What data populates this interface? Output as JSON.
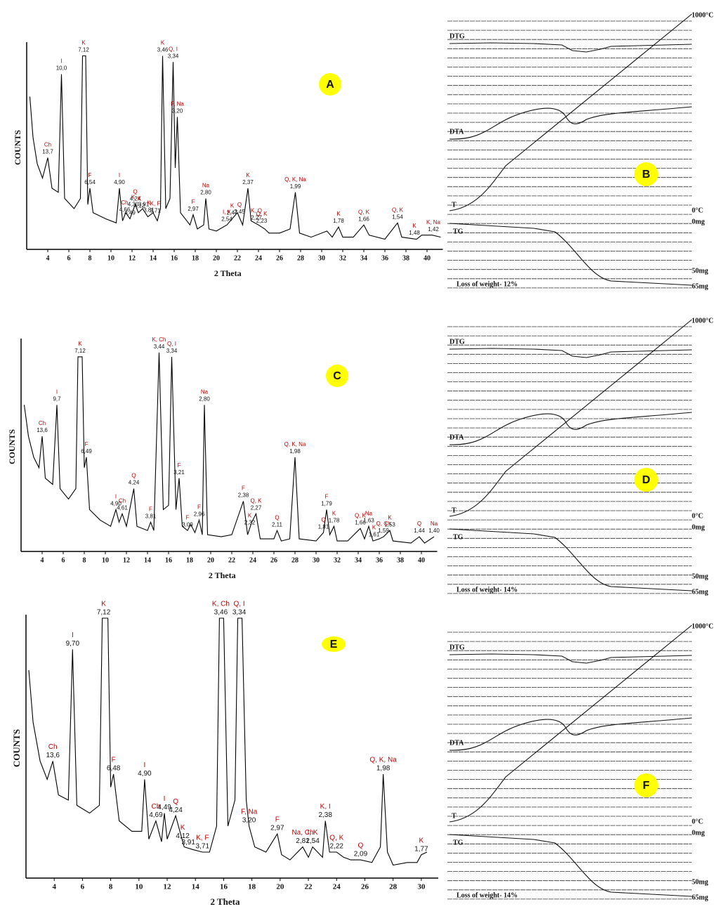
{
  "chart_data": [
    {
      "type": "line",
      "panel_label": "A",
      "ylabel": "COUNTS",
      "xlabel": "2 Theta",
      "color": "#000000",
      "xlim": [
        2,
        41.5
      ],
      "ylim": [
        0,
        100
      ],
      "xticks": [
        4,
        6,
        8,
        10,
        12,
        14,
        16,
        18,
        20,
        22,
        24,
        26,
        28,
        30,
        32,
        34,
        36,
        38,
        40
      ],
      "x": [
        2.3,
        2.6,
        3.0,
        3.5,
        4.0,
        4.4,
        5.0,
        5.3,
        5.6,
        6.5,
        7.1,
        7.3,
        7.6,
        7.8,
        8.0,
        8.3,
        9.5,
        10.5,
        10.8,
        11.1,
        11.4,
        11.8,
        12.3,
        12.6,
        13.0,
        13.5,
        14.0,
        14.4,
        14.7,
        14.9,
        15.2,
        15.6,
        15.9,
        16.1,
        16.3,
        16.6,
        17.5,
        17.8,
        18.2,
        18.8,
        19.0,
        19.3,
        20.0,
        21.0,
        21.5,
        22.0,
        22.5,
        23.0,
        23.3,
        24.0,
        24.6,
        25.0,
        26.0,
        27.0,
        27.5,
        27.9,
        29.0,
        30.5,
        31.0,
        31.6,
        32.0,
        33.0,
        34.0,
        34.5,
        36.0,
        37.2,
        37.6,
        39.0,
        39.5,
        40.5,
        41.3
      ],
      "values": [
        75,
        55,
        42,
        35,
        45,
        30,
        28,
        86,
        25,
        20,
        25,
        95,
        95,
        22,
        30,
        18,
        15,
        13,
        30,
        14,
        18,
        15,
        22,
        18,
        20,
        16,
        18,
        14,
        20,
        95,
        20,
        25,
        92,
        40,
        65,
        18,
        12,
        17,
        10,
        12,
        25,
        10,
        9,
        12,
        15,
        18,
        12,
        30,
        14,
        12,
        10,
        8,
        8,
        10,
        28,
        8,
        6,
        9,
        6,
        11,
        6,
        6,
        12,
        7,
        5,
        13,
        6,
        5,
        7,
        7,
        6
      ],
      "peaks": [
        {
          "x": 4.0,
          "phase": "Ch",
          "d": "13,7"
        },
        {
          "x": 5.3,
          "phase": "I",
          "d": "10,0"
        },
        {
          "x": 7.4,
          "phase": "K",
          "d": "7,12"
        },
        {
          "x": 8.0,
          "phase": "F",
          "d": "6,54"
        },
        {
          "x": 10.8,
          "phase": "I",
          "d": "4,90"
        },
        {
          "x": 11.3,
          "phase": "Ch",
          "d": "4,66"
        },
        {
          "x": 11.8,
          "phase": null,
          "d": "4,49"
        },
        {
          "x": 12.1,
          "phase": "K",
          "d": "4,30"
        },
        {
          "x": 12.3,
          "phase": "Q",
          "d": "4,24"
        },
        {
          "x": 12.7,
          "phase": "K",
          "d": "4,12"
        },
        {
          "x": 13.1,
          "phase": null,
          "d": "3,91"
        },
        {
          "x": 13.6,
          "phase": "K",
          "d": "3,81"
        },
        {
          "x": 14.2,
          "phase": "K, F",
          "d": "3,71"
        },
        {
          "x": 14.9,
          "phase": "K",
          "d": "3,46"
        },
        {
          "x": 15.9,
          "phase": "Q, I",
          "d": "3,34"
        },
        {
          "x": 16.3,
          "phase": "F, Na",
          "d": "3,20"
        },
        {
          "x": 17.8,
          "phase": "F",
          "d": "2,97"
        },
        {
          "x": 19.0,
          "phase": "Na",
          "d": "2,80"
        },
        {
          "x": 21.0,
          "phase": "I, K",
          "d": "2,54"
        },
        {
          "x": 21.5,
          "phase": "K",
          "d": "2,47"
        },
        {
          "x": 22.2,
          "phase": "Q",
          "d": "2,45"
        },
        {
          "x": 23.0,
          "phase": "K",
          "d": "2,37"
        },
        {
          "x": 23.8,
          "phase": "K, Q",
          "d": "2,27"
        },
        {
          "x": 24.3,
          "phase": "Q, K",
          "d": "2,23"
        },
        {
          "x": 27.5,
          "phase": "Q, K, Na",
          "d": "1,99"
        },
        {
          "x": 31.6,
          "phase": "K",
          "d": "1,78"
        },
        {
          "x": 34.0,
          "phase": "Q, K",
          "d": "1,66"
        },
        {
          "x": 37.2,
          "phase": "Q, K",
          "d": "1,54"
        },
        {
          "x": 38.8,
          "phase": "K",
          "d": "1,48"
        },
        {
          "x": 40.6,
          "phase": "K, Na",
          "d": "1,42"
        }
      ]
    },
    {
      "type": "line",
      "panel_label": "C",
      "ylabel": "COUNTS",
      "xlabel": "2 Theta",
      "color": "#000000",
      "xlim": [
        2,
        41.5
      ],
      "ylim": [
        0,
        100
      ],
      "xticks": [
        4,
        6,
        8,
        10,
        12,
        14,
        16,
        18,
        20,
        22,
        24,
        26,
        28,
        30,
        32,
        34,
        36,
        38,
        40
      ],
      "x": [
        2.3,
        2.7,
        3.2,
        3.7,
        4.0,
        4.3,
        5.0,
        5.4,
        5.7,
        6.5,
        7.2,
        7.4,
        7.8,
        8.0,
        8.2,
        8.5,
        9.5,
        10.5,
        11.0,
        11.3,
        11.6,
        12.0,
        12.7,
        13.0,
        14.0,
        14.3,
        14.6,
        15.1,
        15.5,
        16.0,
        16.3,
        16.7,
        17.0,
        17.3,
        17.8,
        18.1,
        18.5,
        18.9,
        19.2,
        19.4,
        19.7,
        21.0,
        22.0,
        23.1,
        23.5,
        23.9,
        24.3,
        24.7,
        26.0,
        26.3,
        26.7,
        27.5,
        28.0,
        28.4,
        30.0,
        30.7,
        31.0,
        31.3,
        31.7,
        32.0,
        33.0,
        34.2,
        34.6,
        35.0,
        35.4,
        36.0,
        36.4,
        37.0,
        37.3,
        39.0,
        39.8,
        40.3,
        41.2
      ],
      "values": [
        70,
        55,
        45,
        40,
        55,
        35,
        32,
        70,
        30,
        25,
        30,
        93,
        93,
        40,
        45,
        20,
        15,
        12,
        20,
        14,
        18,
        12,
        30,
        12,
        10,
        14,
        10,
        95,
        20,
        22,
        93,
        20,
        35,
        12,
        10,
        13,
        9,
        15,
        8,
        70,
        8,
        7,
        8,
        24,
        8,
        14,
        18,
        6,
        6,
        10,
        5,
        6,
        45,
        6,
        5,
        9,
        20,
        8,
        12,
        5,
        5,
        11,
        6,
        12,
        5,
        6,
        7,
        10,
        5,
        4,
        7,
        4,
        7
      ],
      "peaks": [
        {
          "x": 4.0,
          "phase": "Ch",
          "d": "13,6"
        },
        {
          "x": 5.4,
          "phase": "I",
          "d": "9,7"
        },
        {
          "x": 7.6,
          "phase": "K",
          "d": "7,12"
        },
        {
          "x": 8.2,
          "phase": "F",
          "d": "6,49"
        },
        {
          "x": 11.0,
          "phase": "I",
          "d": "4,90"
        },
        {
          "x": 11.6,
          "phase": "Ch",
          "d": "4,61"
        },
        {
          "x": 12.7,
          "phase": "Q",
          "d": "4,24"
        },
        {
          "x": 14.3,
          "phase": "F",
          "d": "3,81"
        },
        {
          "x": 15.1,
          "phase": "K, Ch",
          "d": "3,44"
        },
        {
          "x": 16.3,
          "phase": "Q, I",
          "d": "3,34"
        },
        {
          "x": 17.0,
          "phase": "F",
          "d": "3,21"
        },
        {
          "x": 17.8,
          "phase": "F",
          "d": "3,09"
        },
        {
          "x": 18.9,
          "phase": "F",
          "d": "2,96"
        },
        {
          "x": 19.4,
          "phase": "Na",
          "d": "2,80"
        },
        {
          "x": 23.1,
          "phase": "F",
          "d": "2,38"
        },
        {
          "x": 23.7,
          "phase": "K",
          "d": "2,32"
        },
        {
          "x": 24.3,
          "phase": "Q, K",
          "d": "2,27"
        },
        {
          "x": 26.3,
          "phase": "Q",
          "d": "2,11"
        },
        {
          "x": 28.0,
          "phase": "Q, K, Na",
          "d": "1,98"
        },
        {
          "x": 30.7,
          "phase": "Q",
          "d": "1,81"
        },
        {
          "x": 31.0,
          "phase": "F",
          "d": "1,79"
        },
        {
          "x": 31.7,
          "phase": "K",
          "d": "1,78"
        },
        {
          "x": 34.2,
          "phase": "Q, K",
          "d": "1,66"
        },
        {
          "x": 35.0,
          "phase": "Na",
          "d": "1,63"
        },
        {
          "x": 35.5,
          "phase": "K",
          "d": "1,61"
        },
        {
          "x": 36.4,
          "phase": "Q, Ch",
          "d": "1,59"
        },
        {
          "x": 37.0,
          "phase": "K",
          "d": "1,53"
        },
        {
          "x": 39.8,
          "phase": "Q",
          "d": "1,44"
        },
        {
          "x": 41.2,
          "phase": "Na",
          "d": "1,40"
        }
      ]
    },
    {
      "type": "line",
      "panel_label": "E",
      "ylabel": "COUNTS",
      "xlabel": "2 Theta",
      "color": "#000000",
      "xlim": [
        2,
        31.2
      ],
      "ylim": [
        0,
        100
      ],
      "xticks": [
        4,
        6,
        8,
        10,
        12,
        14,
        16,
        18,
        20,
        22,
        24,
        26,
        28,
        30
      ],
      "x": [
        2.2,
        2.5,
        3.0,
        3.5,
        3.9,
        4.3,
        5.0,
        5.3,
        5.6,
        6.5,
        7.2,
        7.4,
        7.8,
        8.0,
        8.2,
        8.6,
        9.5,
        10.2,
        10.4,
        10.7,
        11.2,
        11.6,
        11.8,
        12.0,
        12.6,
        12.9,
        13.2,
        13.8,
        14.5,
        15.0,
        15.5,
        15.7,
        16.0,
        16.3,
        16.8,
        17.0,
        17.3,
        17.6,
        17.8,
        18.2,
        19.0,
        19.8,
        20.1,
        20.7,
        21.6,
        22.0,
        22.3,
        23.0,
        23.2,
        23.5,
        24.0,
        24.5,
        25.0,
        25.7,
        26.5,
        27.1,
        27.3,
        27.6,
        28.0,
        29.0,
        29.7,
        30.0,
        30.4
      ],
      "values": [
        80,
        60,
        45,
        38,
        45,
        32,
        30,
        88,
        28,
        25,
        28,
        100,
        100,
        35,
        40,
        22,
        18,
        18,
        38,
        15,
        22,
        14,
        25,
        15,
        24,
        18,
        12,
        11,
        10,
        10,
        20,
        100,
        100,
        20,
        30,
        100,
        100,
        30,
        20,
        12,
        10,
        17,
        9,
        7,
        12,
        8,
        12,
        8,
        22,
        10,
        10,
        8,
        7,
        7,
        6,
        12,
        40,
        10,
        5,
        6,
        6,
        9,
        10
      ],
      "peaks": [
        {
          "x": 3.9,
          "phase": "Ch",
          "d": "13,6"
        },
        {
          "x": 5.3,
          "phase": "I",
          "d": "9,70"
        },
        {
          "x": 7.5,
          "phase": "K",
          "d": "7,12"
        },
        {
          "x": 8.2,
          "phase": "F",
          "d": "6,48"
        },
        {
          "x": 10.4,
          "phase": "I",
          "d": "4,90"
        },
        {
          "x": 11.2,
          "phase": "Ch",
          "d": "4,69"
        },
        {
          "x": 11.8,
          "phase": "I",
          "d": "4,49"
        },
        {
          "x": 12.6,
          "phase": "Q",
          "d": "4,24"
        },
        {
          "x": 13.1,
          "phase": "K",
          "d": "4,12"
        },
        {
          "x": 13.5,
          "phase": null,
          "d": "3,91"
        },
        {
          "x": 14.5,
          "phase": "K, F",
          "d": "3,71"
        },
        {
          "x": 15.8,
          "phase": "K, Ch",
          "d": "3,46"
        },
        {
          "x": 17.1,
          "phase": "Q, I",
          "d": "3,34"
        },
        {
          "x": 17.8,
          "phase": "F, Na",
          "d": "3,20"
        },
        {
          "x": 19.8,
          "phase": "F",
          "d": "2,97"
        },
        {
          "x": 21.6,
          "phase": "Na, Ch",
          "d": "2,81"
        },
        {
          "x": 22.3,
          "phase": "I, K",
          "d": "2,54"
        },
        {
          "x": 23.2,
          "phase": "K, I",
          "d": "2,38"
        },
        {
          "x": 24.0,
          "phase": "Q, K",
          "d": "2,22"
        },
        {
          "x": 25.7,
          "phase": "Q",
          "d": "2,09"
        },
        {
          "x": 27.3,
          "phase": "Q, K, Na",
          "d": "1,98"
        },
        {
          "x": 30.0,
          "phase": "K",
          "d": "1,77"
        }
      ]
    }
  ],
  "thermal": [
    {
      "panel_label": "B",
      "temp_max": "1000°C",
      "temp_min": "0°C",
      "dtg": "DTG",
      "dta": "DTA",
      "t": "T",
      "tg": "TG",
      "mass_0": "0mg",
      "mass_50": "50mg",
      "mass_65": "65mg",
      "loss": "Loss of weight- 12%"
    },
    {
      "panel_label": "D",
      "temp_max": "1000°C",
      "temp_min": "0°C",
      "dtg": "DTG",
      "dta": "DTA",
      "t": "T",
      "tg": "TG",
      "mass_0": "0mg",
      "mass_50": "50mg",
      "mass_65": "65mg",
      "loss": "Loss of weight- 14%"
    },
    {
      "panel_label": "F",
      "temp_max": "1000°C",
      "temp_min": "0°C",
      "dtg": "DTG",
      "dta": "DTA",
      "t": "T",
      "tg": "TG",
      "mass_0": "0mg",
      "mass_50": "50mg",
      "mass_65": "65mg",
      "loss": "Loss of weight- 14%"
    }
  ]
}
